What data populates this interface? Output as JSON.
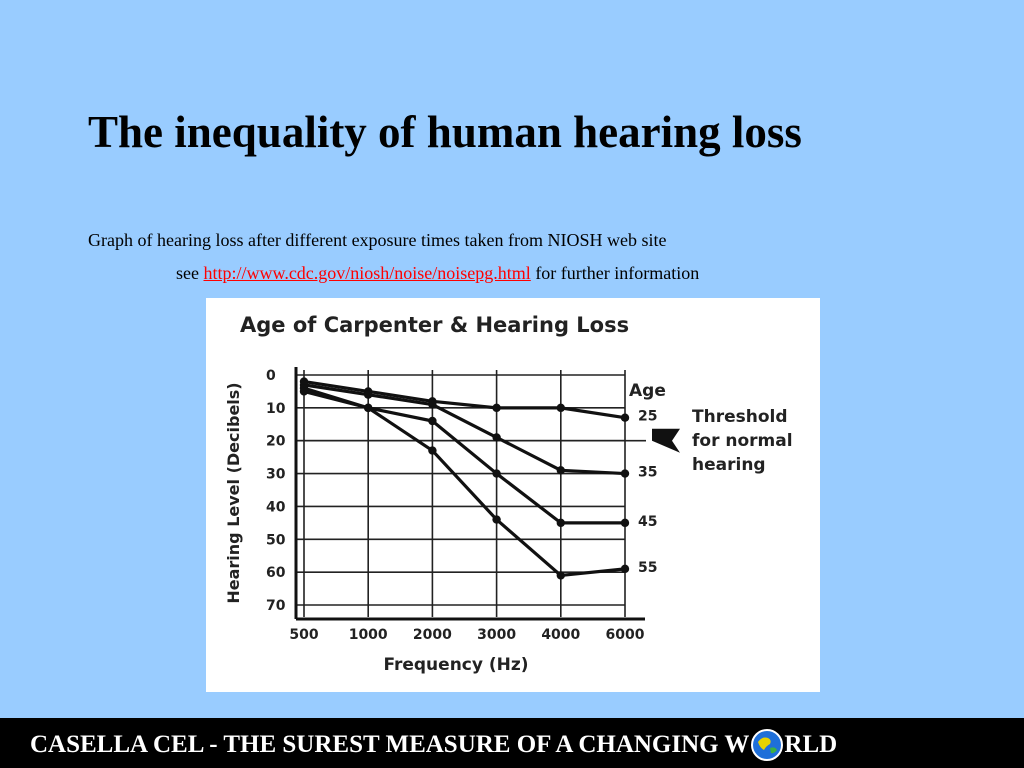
{
  "slide": {
    "title": "The inequality of human hearing loss",
    "caption_line1": "Graph of hearing loss after different exposure times taken from NIOSH web site",
    "caption_see": "see",
    "link_text": "http://www.cdc.gov/niosh/noise/noisepg.html",
    "caption_after_link": " for further information"
  },
  "footer": {
    "text_before_icon": "CASELLA CEL - THE SUREST MEASURE OF A CHANGING W",
    "icon": "globe-icon",
    "text_after_icon": "RLD"
  },
  "colors": {
    "background": "#99ccff",
    "link": "#ff0000",
    "footer_bg": "#000000"
  },
  "chart_data": {
    "type": "line",
    "title": "Age of Carpenter & Hearing Loss",
    "xlabel": "Frequency (Hz)",
    "ylabel": "Hearing Level (Decibels)",
    "categories": [
      "500",
      "1000",
      "2000",
      "3000",
      "4000",
      "6000"
    ],
    "yticks": [
      "0",
      "10",
      "20",
      "30",
      "40",
      "50",
      "60",
      "70"
    ],
    "ylim": [
      0,
      70
    ],
    "y_inverted": true,
    "grid": true,
    "legend_title": "Age",
    "series": [
      {
        "name": "25",
        "values": [
          2,
          5,
          8,
          10,
          10,
          13
        ]
      },
      {
        "name": "35",
        "values": [
          3,
          6,
          9,
          19,
          29,
          30
        ]
      },
      {
        "name": "45",
        "values": [
          4,
          10,
          14,
          30,
          45,
          45
        ]
      },
      {
        "name": "55",
        "values": [
          5,
          10,
          23,
          44,
          61,
          59
        ]
      }
    ],
    "threshold": {
      "value": 20,
      "label_lines": [
        "Threshold",
        "for normal",
        "hearing"
      ]
    }
  }
}
